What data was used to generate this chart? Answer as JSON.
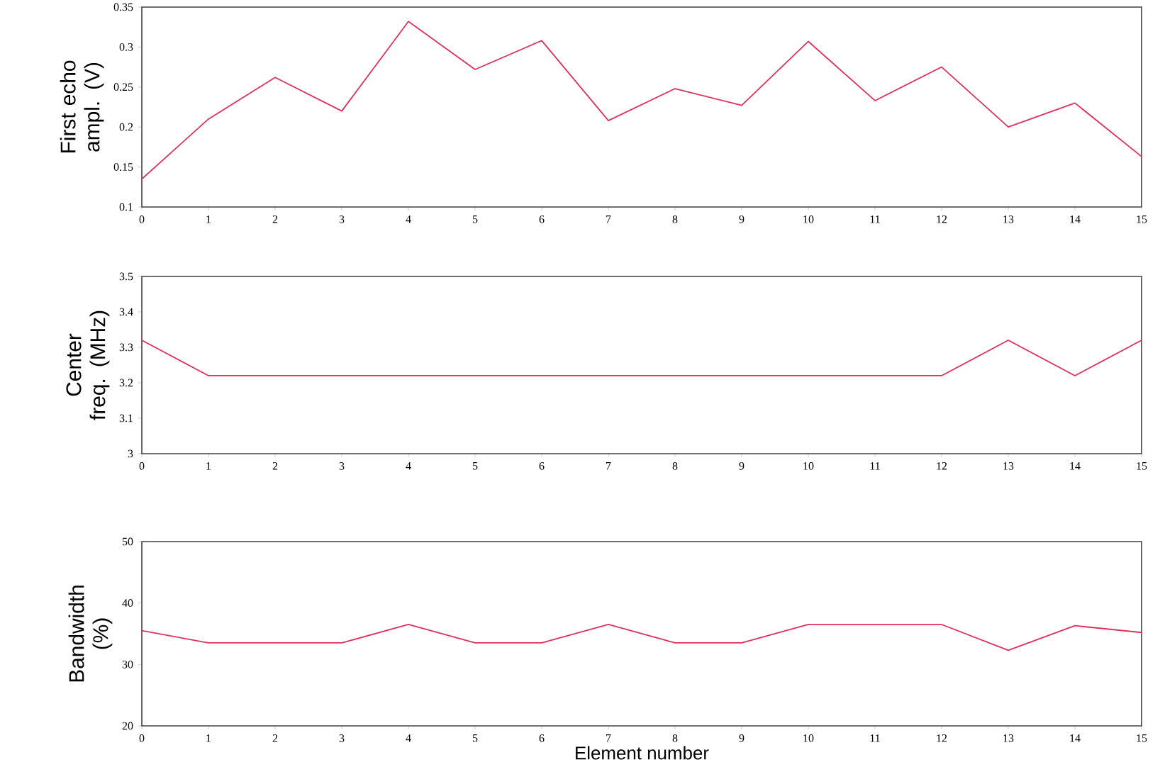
{
  "chart_data": [
    {
      "type": "line",
      "ylabel": "First echo ampl. (V)",
      "x": [
        0,
        1,
        2,
        3,
        4,
        5,
        6,
        7,
        8,
        9,
        10,
        11,
        12,
        13,
        14,
        15
      ],
      "values": [
        0.135,
        0.21,
        0.262,
        0.22,
        0.332,
        0.272,
        0.308,
        0.208,
        0.248,
        0.227,
        0.307,
        0.233,
        0.275,
        0.2,
        0.23,
        0.163
      ],
      "color": "#e0305a",
      "xlim": [
        0,
        15
      ],
      "xticks": [
        0,
        1,
        2,
        3,
        4,
        5,
        6,
        7,
        8,
        9,
        10,
        11,
        12,
        13,
        14,
        15
      ],
      "ylim": [
        0.1,
        0.35
      ],
      "yticks": [
        0.1,
        0.15,
        0.2,
        0.25,
        0.3,
        0.35
      ]
    },
    {
      "type": "line",
      "ylabel": "Center freq. (MHz)",
      "x": [
        0,
        1,
        2,
        3,
        4,
        5,
        6,
        7,
        8,
        9,
        10,
        11,
        12,
        13,
        14,
        15
      ],
      "values": [
        3.32,
        3.22,
        3.22,
        3.22,
        3.22,
        3.22,
        3.22,
        3.22,
        3.22,
        3.22,
        3.22,
        3.22,
        3.22,
        3.32,
        3.22,
        3.32
      ],
      "color": "#e0305a",
      "xlim": [
        0,
        15
      ],
      "xticks": [
        0,
        1,
        2,
        3,
        4,
        5,
        6,
        7,
        8,
        9,
        10,
        11,
        12,
        13,
        14,
        15
      ],
      "ylim": [
        3,
        3.5
      ],
      "yticks": [
        3,
        3.1,
        3.2,
        3.3,
        3.4,
        3.5
      ]
    },
    {
      "type": "line",
      "ylabel": "Bandwidth (%)",
      "xlabel": "Element number",
      "x": [
        0,
        1,
        2,
        3,
        4,
        5,
        6,
        7,
        8,
        9,
        10,
        11,
        12,
        13,
        14,
        15
      ],
      "values": [
        35.5,
        33.5,
        33.5,
        33.5,
        36.5,
        33.5,
        33.5,
        36.5,
        33.5,
        33.5,
        36.5,
        36.5,
        36.5,
        32.3,
        36.3,
        35.2
      ],
      "color": "#e0305a",
      "xlim": [
        0,
        15
      ],
      "xticks": [
        0,
        1,
        2,
        3,
        4,
        5,
        6,
        7,
        8,
        9,
        10,
        11,
        12,
        13,
        14,
        15
      ],
      "ylim": [
        20,
        50
      ],
      "yticks": [
        20,
        30,
        40,
        50
      ]
    }
  ]
}
